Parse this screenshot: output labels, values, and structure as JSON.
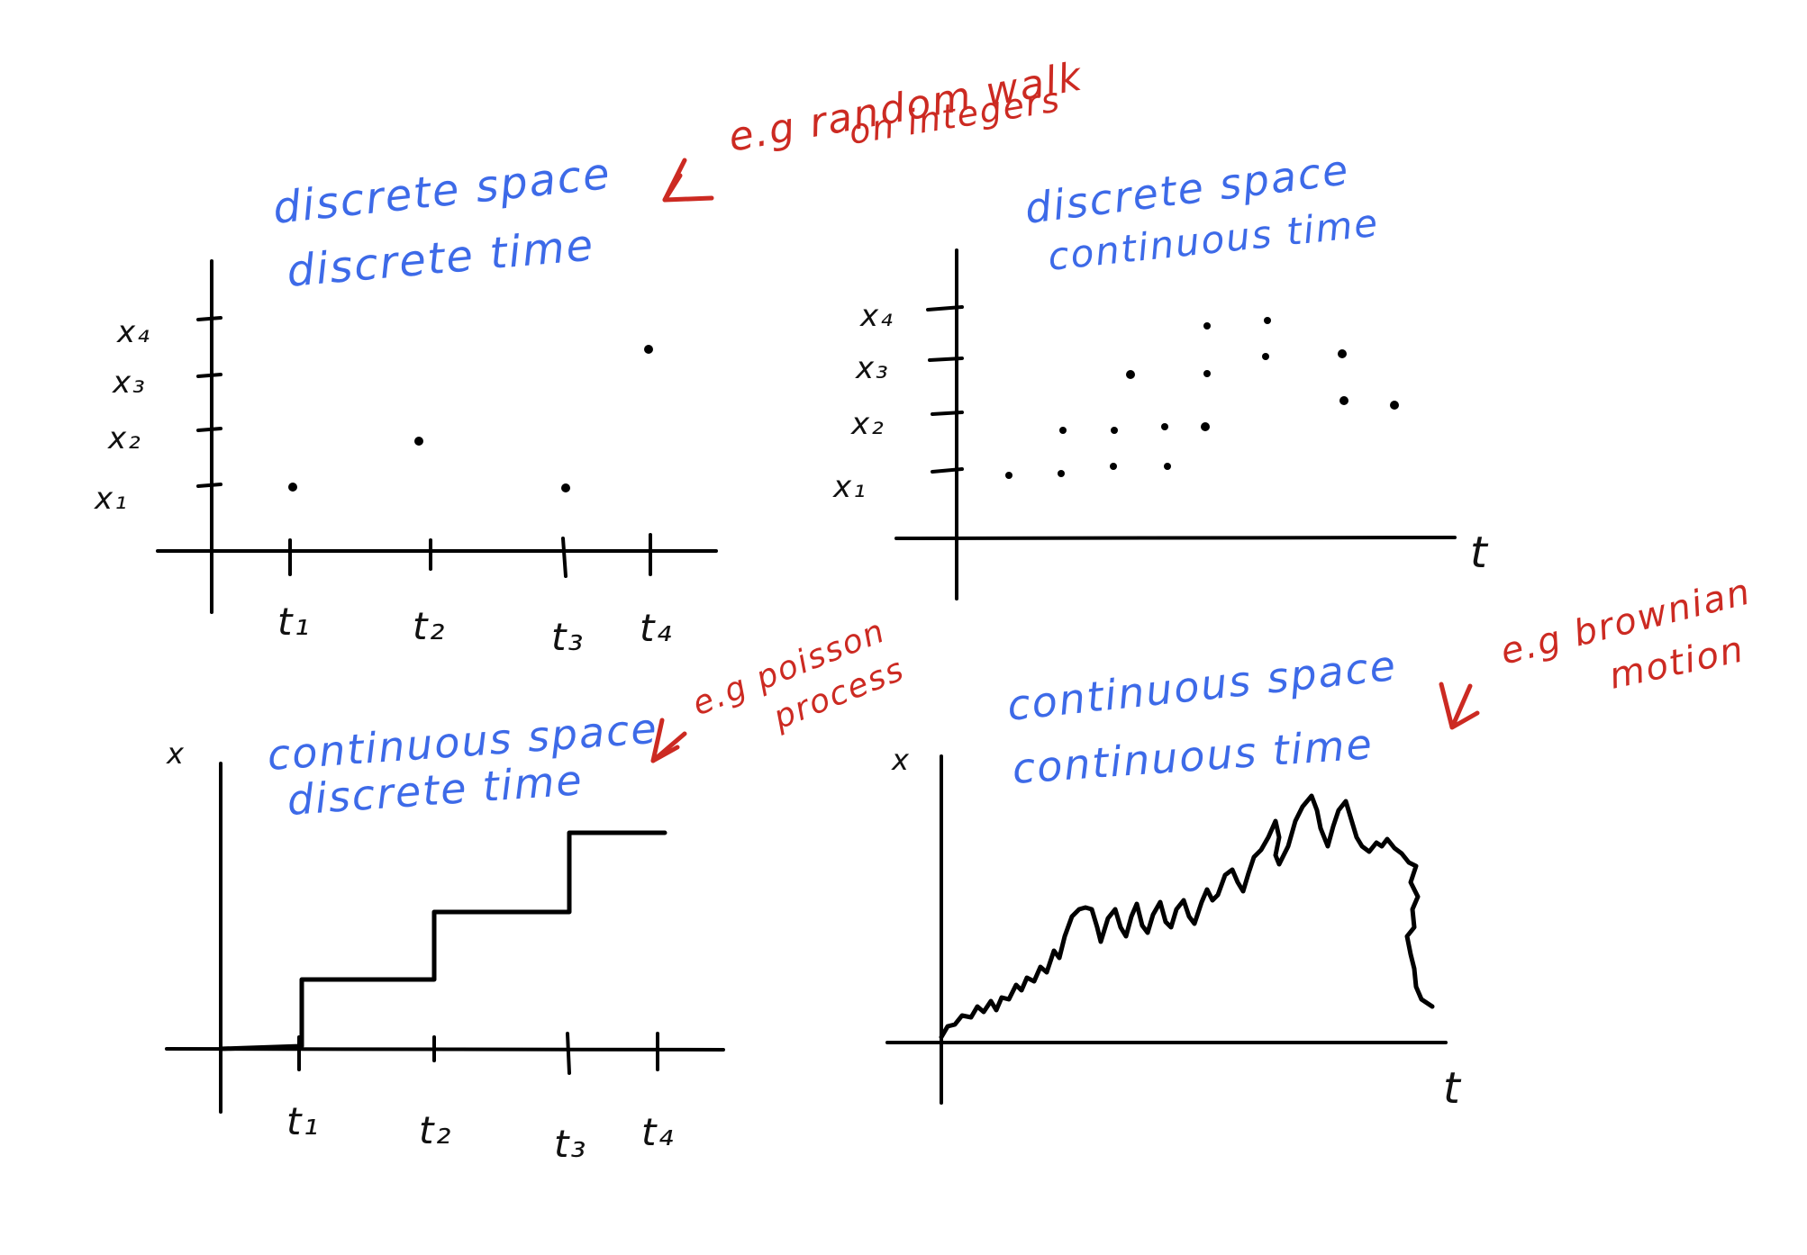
{
  "labels": {
    "q1_line1": "discrete space",
    "q1_line2": "discrete time",
    "q2_line1": "discrete space",
    "q2_line2": "continuous time",
    "q3_line1": "continuous space",
    "q3_line2": "discrete time",
    "q4_line1": "continuous space",
    "q4_line2": "continuous time"
  },
  "notes": {
    "random_walk_1": "e.g random walk",
    "random_walk_2": "on integers",
    "poisson_1": "e.g poisson",
    "poisson_2": "process",
    "brownian_1": "e.g brownian",
    "brownian_2": "motion"
  },
  "axes": {
    "x_ticks": [
      "t₁",
      "t₂",
      "t₃",
      "t₄"
    ],
    "y_ticks": [
      "x₁",
      "x₂",
      "x₃",
      "x₄"
    ],
    "x_label": "t",
    "y_label": "x"
  },
  "chart_data": [
    {
      "type": "scatter",
      "name_key": "discrete space / discrete time",
      "x": [
        1,
        2,
        3,
        4
      ],
      "y": [
        1,
        2,
        1,
        4
      ]
    },
    {
      "type": "scatter",
      "name_key": "discrete space / continuous time",
      "points": [
        [
          0.5,
          1
        ],
        [
          1.0,
          1
        ],
        [
          1.0,
          2
        ],
        [
          1.5,
          1.2
        ],
        [
          1.5,
          2
        ],
        [
          1.9,
          1.2
        ],
        [
          1.9,
          2
        ],
        [
          2.2,
          2
        ],
        [
          2.2,
          3
        ],
        [
          2.2,
          4.2
        ],
        [
          1.6,
          3
        ],
        [
          2.7,
          4.2
        ],
        [
          2.7,
          3.4
        ],
        [
          3.4,
          3.4
        ],
        [
          3.4,
          2.6
        ],
        [
          3.9,
          2.5
        ]
      ]
    },
    {
      "type": "line",
      "name_key": "continuous space / discrete time",
      "step_x": [
        0,
        1,
        2,
        3,
        4
      ],
      "step_y": [
        0,
        1,
        2,
        3,
        3
      ]
    },
    {
      "type": "line",
      "name_key": "continuous space / continuous time",
      "shape": "brownian"
    }
  ],
  "colors": {
    "blue": "#3d6ae8",
    "red": "#cc2a22",
    "ink": "#111111"
  }
}
